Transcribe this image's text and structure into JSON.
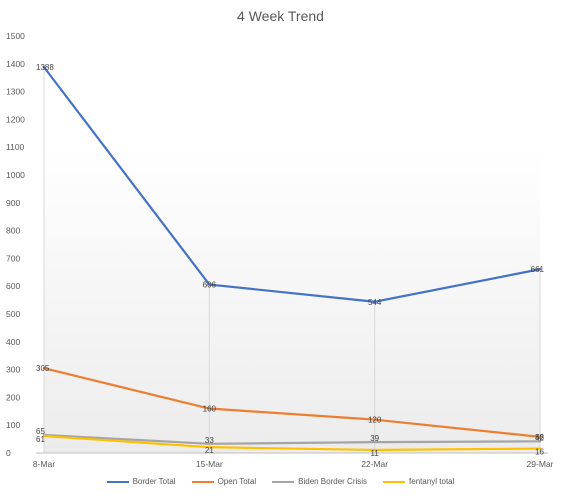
{
  "chart_data": {
    "type": "line",
    "title": "4 Week Trend",
    "categories": [
      "8-Mar",
      "15-Mar",
      "22-Mar",
      "29-Mar"
    ],
    "ylim": [
      0,
      1500
    ],
    "yticks": [
      0,
      100,
      200,
      300,
      400,
      500,
      600,
      700,
      800,
      900,
      1000,
      1100,
      1200,
      1300,
      1400,
      1500
    ],
    "grid": false,
    "legend_position": "bottom",
    "series": [
      {
        "name": "Border Total",
        "color": "#4472C4",
        "values": [
          1388,
          606,
          544,
          661
        ],
        "labels": [
          "1388",
          "606",
          "544",
          "661"
        ]
      },
      {
        "name": "Open Total",
        "color": "#ED7D31",
        "values": [
          305,
          160,
          120,
          58
        ],
        "labels": [
          "305",
          "160",
          "120",
          "58"
        ]
      },
      {
        "name": "Biden Border Crisis",
        "color": "#A5A5A5",
        "values": [
          65,
          33,
          39,
          42
        ],
        "labels": [
          "65",
          "33",
          "39",
          "42"
        ]
      },
      {
        "name": "fentanyl total",
        "color": "#FFC000",
        "values": [
          61,
          21,
          11,
          16
        ],
        "labels": [
          "61",
          "21",
          "11",
          "16"
        ]
      }
    ]
  }
}
